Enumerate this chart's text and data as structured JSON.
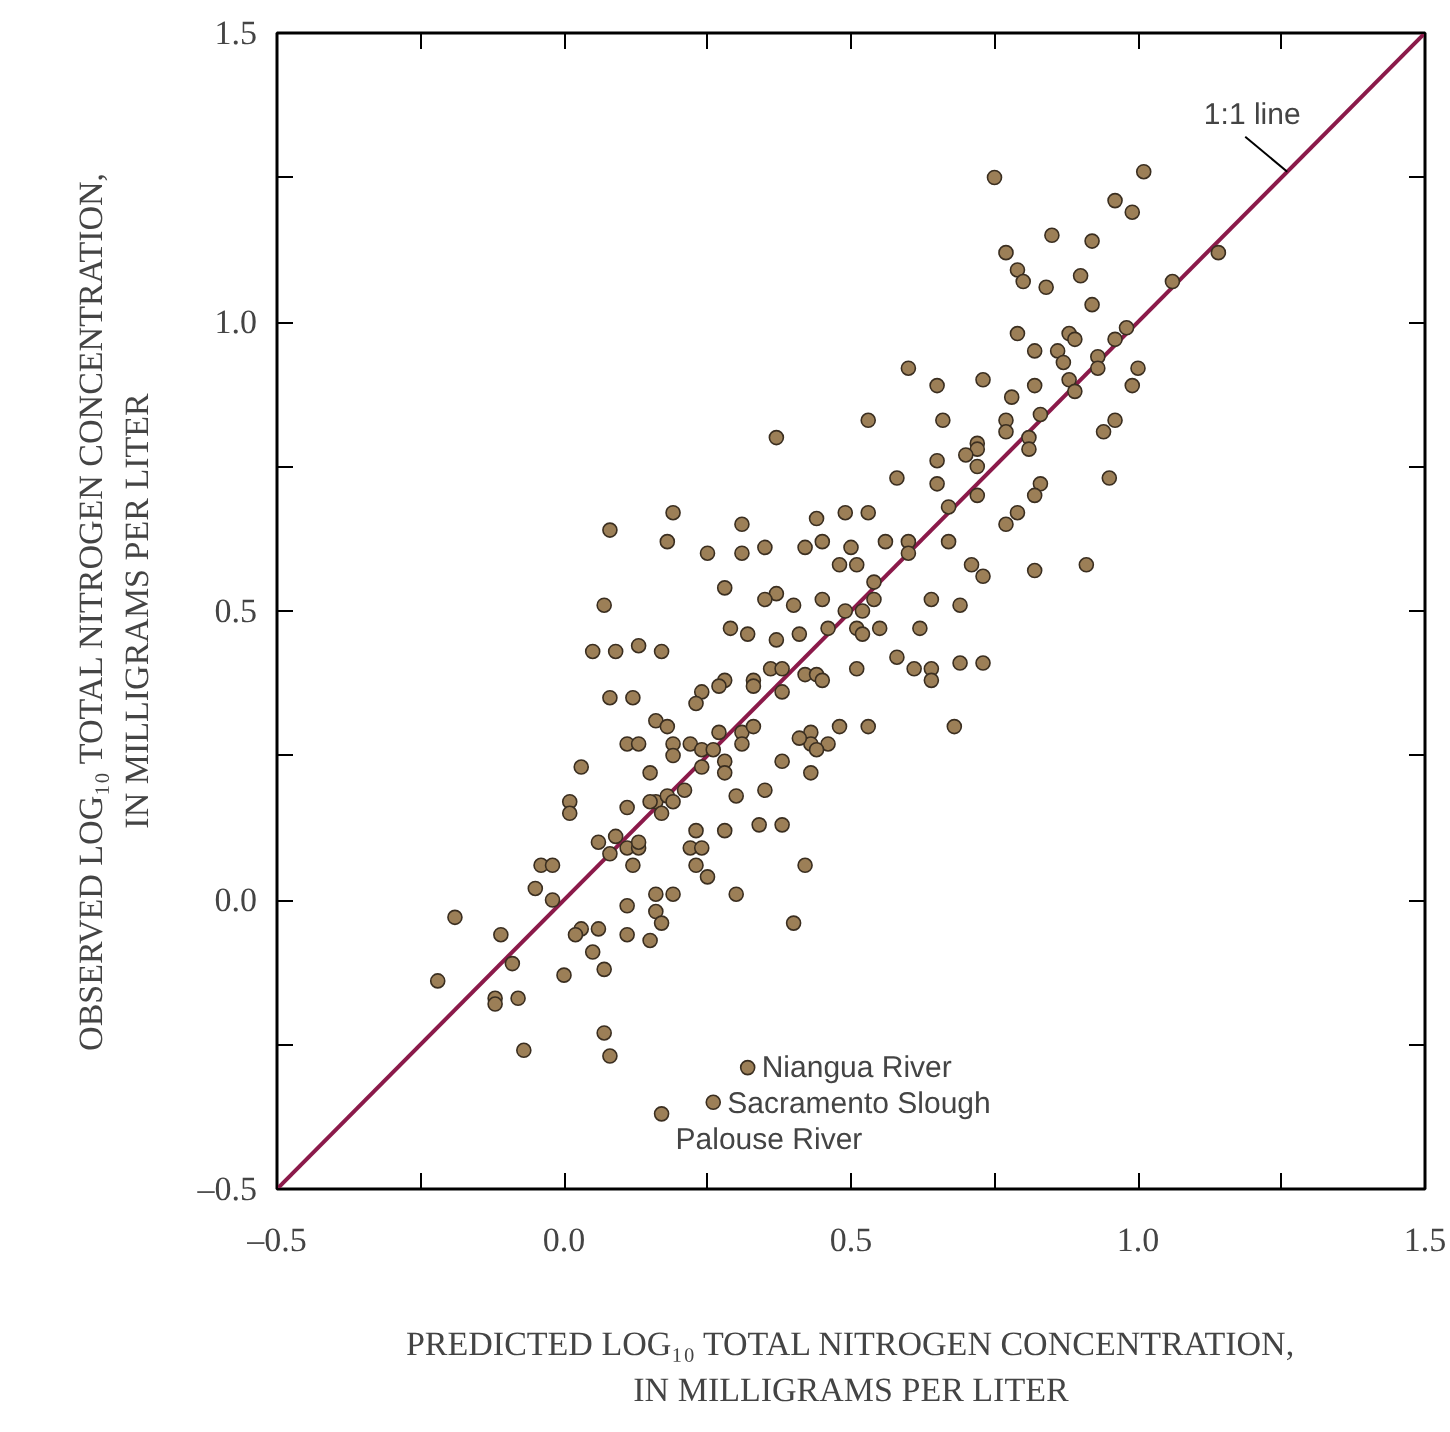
{
  "chart_data": {
    "type": "scatter",
    "xlabel": "PREDICTED LOG₁₀ TOTAL NITROGEN CONCENTRATION,\nIN MILLIGRAMS PER LITER",
    "ylabel": "OBSERVED LOG₁₀ TOTAL NITROGEN CONCENTRATION,\nIN MILLIGRAMS PER LITER",
    "xlim": [
      -0.5,
      1.5
    ],
    "ylim": [
      -0.5,
      1.5
    ],
    "xticks": [
      {
        "value": -0.5,
        "label": "–0.5"
      },
      {
        "value": -0.25,
        "label": null
      },
      {
        "value": 0,
        "label": "0.0"
      },
      {
        "value": 0.25,
        "label": null
      },
      {
        "value": 0.5,
        "label": "0.5"
      },
      {
        "value": 0.75,
        "label": null
      },
      {
        "value": 1,
        "label": "1.0"
      },
      {
        "value": 1.25,
        "label": null
      },
      {
        "value": 1.5,
        "label": "1.5"
      }
    ],
    "yticks": [
      {
        "value": -0.5,
        "label": "–0.5"
      },
      {
        "value": -0.25,
        "label": null
      },
      {
        "value": 0,
        "label": "0.0"
      },
      {
        "value": 0.25,
        "label": null
      },
      {
        "value": 0.5,
        "label": "0.5"
      },
      {
        "value": 0.75,
        "label": null
      },
      {
        "value": 1,
        "label": "1.0"
      },
      {
        "value": 1.25,
        "label": null
      },
      {
        "value": 1.5,
        "label": "1.5"
      }
    ],
    "grid": false,
    "series": [
      {
        "color": "#9c7f57",
        "marker": "circle",
        "x": [
          0.75,
          1.01,
          0.96,
          0.99,
          0.77,
          0.85,
          0.92,
          0.79,
          0.8,
          0.84,
          0.9,
          0.92,
          1.14,
          1.06,
          0.79,
          0.88,
          0.89,
          0.86,
          0.82,
          0.87,
          0.98,
          0.96,
          0.93,
          0.93,
          1.0,
          0.99,
          0.88,
          0.89,
          0.82,
          0.78,
          0.73,
          0.6,
          0.65,
          0.66,
          0.53,
          0.37,
          0.77,
          0.77,
          0.83,
          0.96,
          0.94,
          0.81,
          0.81,
          0.72,
          0.72,
          0.7,
          0.65,
          0.72,
          0.95,
          0.83,
          0.82,
          0.65,
          0.58,
          0.72,
          0.67,
          0.77,
          0.79,
          0.67,
          0.6,
          0.6,
          0.71,
          0.73,
          0.82,
          0.91,
          0.19,
          0.08,
          0.18,
          0.31,
          0.25,
          0.31,
          0.35,
          0.42,
          0.44,
          0.49,
          0.53,
          0.45,
          0.5,
          0.56,
          0.48,
          0.51,
          0.54,
          0.28,
          0.07,
          0.37,
          0.35,
          0.4,
          0.45,
          0.49,
          0.54,
          0.52,
          0.64,
          0.69,
          0.51,
          0.52,
          0.55,
          0.62,
          0.46,
          0.41,
          0.32,
          0.29,
          0.37,
          0.05,
          0.09,
          0.13,
          0.17,
          0.36,
          0.38,
          0.42,
          0.44,
          0.45,
          0.51,
          0.58,
          0.61,
          0.64,
          0.64,
          0.69,
          0.73,
          0.33,
          0.33,
          0.38,
          0.28,
          0.27,
          0.24,
          0.23,
          0.08,
          0.12,
          0.16,
          0.18,
          0.19,
          0.27,
          0.31,
          0.33,
          0.48,
          0.53,
          0.68,
          0.43,
          0.43,
          0.41,
          0.46,
          0.44,
          0.43,
          0.38,
          0.31,
          0.22,
          0.24,
          0.26,
          0.28,
          0.28,
          0.24,
          0.11,
          0.13,
          0.03,
          0.15,
          0.19,
          0.21,
          0.3,
          0.35,
          0.16,
          0.18,
          0.17,
          0.19,
          0.15,
          0.01,
          0.01,
          0.11,
          0.34,
          0.38,
          0.28,
          0.23,
          0.06,
          0.09,
          0.08,
          0.11,
          0.13,
          0.13,
          0.22,
          0.24,
          0.12,
          0.23,
          0.25,
          0.42,
          -0.04,
          -0.02,
          -0.05,
          -0.02,
          0.19,
          0.3,
          0.16,
          0.11,
          0.16,
          0.17,
          -0.19,
          0.4,
          0.03,
          0.06,
          0.02,
          0.11,
          0.15,
          -0.11,
          0.05,
          -0.09,
          0.07,
          0.0,
          -0.22,
          -0.12,
          -0.12,
          -0.08,
          0.07,
          0.08,
          -0.07,
          0.32,
          0.26,
          0.17
        ],
        "values": [
          1.25,
          1.26,
          1.21,
          1.19,
          1.12,
          1.15,
          1.14,
          1.09,
          1.07,
          1.06,
          1.08,
          1.03,
          1.12,
          1.07,
          0.98,
          0.98,
          0.97,
          0.95,
          0.95,
          0.93,
          0.99,
          0.97,
          0.94,
          0.92,
          0.92,
          0.89,
          0.9,
          0.88,
          0.89,
          0.87,
          0.9,
          0.92,
          0.89,
          0.83,
          0.83,
          0.8,
          0.83,
          0.81,
          0.84,
          0.83,
          0.81,
          0.8,
          0.78,
          0.79,
          0.78,
          0.77,
          0.76,
          0.75,
          0.73,
          0.72,
          0.7,
          0.72,
          0.73,
          0.7,
          0.68,
          0.65,
          0.67,
          0.62,
          0.62,
          0.6,
          0.58,
          0.56,
          0.57,
          0.58,
          0.67,
          0.64,
          0.62,
          0.65,
          0.6,
          0.6,
          0.61,
          0.61,
          0.66,
          0.67,
          0.67,
          0.62,
          0.61,
          0.62,
          0.58,
          0.58,
          0.55,
          0.54,
          0.51,
          0.53,
          0.52,
          0.51,
          0.52,
          0.5,
          0.52,
          0.5,
          0.52,
          0.51,
          0.47,
          0.46,
          0.47,
          0.47,
          0.47,
          0.46,
          0.46,
          0.47,
          0.45,
          0.43,
          0.43,
          0.44,
          0.43,
          0.4,
          0.4,
          0.39,
          0.39,
          0.38,
          0.4,
          0.42,
          0.4,
          0.4,
          0.38,
          0.41,
          0.41,
          0.38,
          0.37,
          0.36,
          0.38,
          0.37,
          0.36,
          0.34,
          0.35,
          0.35,
          0.31,
          0.3,
          0.27,
          0.29,
          0.29,
          0.3,
          0.3,
          0.3,
          0.3,
          0.29,
          0.27,
          0.28,
          0.27,
          0.26,
          0.22,
          0.24,
          0.27,
          0.27,
          0.26,
          0.26,
          0.24,
          0.22,
          0.23,
          0.27,
          0.27,
          0.23,
          0.22,
          0.25,
          0.19,
          0.18,
          0.19,
          0.17,
          0.18,
          0.15,
          0.17,
          0.17,
          0.17,
          0.15,
          0.16,
          0.13,
          0.13,
          0.12,
          0.12,
          0.1,
          0.11,
          0.08,
          0.09,
          0.09,
          0.1,
          0.09,
          0.09,
          0.06,
          0.06,
          0.04,
          0.06,
          0.06,
          0.06,
          0.02,
          0.0,
          0.01,
          0.01,
          0.01,
          -0.01,
          -0.02,
          -0.04,
          -0.03,
          -0.04,
          -0.05,
          -0.05,
          -0.06,
          -0.06,
          -0.07,
          -0.06,
          -0.09,
          -0.11,
          -0.12,
          -0.13,
          -0.14,
          -0.17,
          -0.18,
          -0.17,
          -0.23,
          -0.27,
          -0.26,
          -0.29,
          -0.35,
          -0.37
        ]
      },
      {
        "type": "line",
        "name": "1:1 line",
        "color": "#8b1a4a",
        "x": [
          -0.5,
          1.5
        ],
        "values": [
          -0.5,
          1.5
        ]
      }
    ],
    "annotations": [
      {
        "text": "Niangua River",
        "x": 0.32,
        "y": -0.29
      },
      {
        "text": "Sacramento Slough",
        "x": 0.26,
        "y": -0.35
      },
      {
        "text": "Palouse River",
        "x": 0.17,
        "y": -0.37
      }
    ]
  }
}
